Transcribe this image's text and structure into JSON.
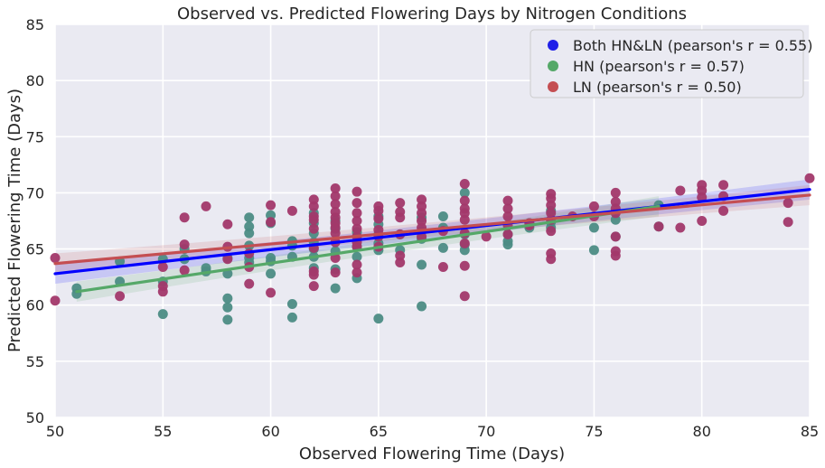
{
  "chart_data": {
    "type": "scatter",
    "title": "Observed vs. Predicted Flowering Days by Nitrogen Conditions",
    "xlabel": "Observed Flowering Time (Days)",
    "ylabel": "Predicted Flowering Time (Days)",
    "xlim": [
      50,
      85
    ],
    "ylim": [
      50,
      85
    ],
    "xticks": [
      "50",
      "55",
      "60",
      "65",
      "70",
      "75",
      "80",
      "85"
    ],
    "yticks": [
      "50",
      "55",
      "60",
      "65",
      "70",
      "75",
      "80",
      "85"
    ],
    "grid": true,
    "legend_position": "top-right",
    "legend": [
      {
        "label": "Both HN&LN (pearson's r = 0.55)",
        "color": "#2020e8"
      },
      {
        "label": "HN (pearson's r = 0.57)",
        "color": "#55a868"
      },
      {
        "label": "LN (pearson's r = 0.50)",
        "color": "#c44e52"
      }
    ],
    "regression_lines": [
      {
        "series": "Both HN&LN",
        "color": "#0000ff",
        "x": [
          50,
          85
        ],
        "y": [
          62.8,
          70.3
        ]
      },
      {
        "series": "HN",
        "color": "#55a868",
        "x": [
          51,
          78
        ],
        "y": [
          61.2,
          68.8
        ]
      },
      {
        "series": "LN",
        "color": "#c44e52",
        "x": [
          50,
          85
        ],
        "y": [
          63.7,
          69.8
        ]
      }
    ],
    "series": [
      {
        "name": "HN",
        "color": "#4c8c84",
        "points": [
          [
            51,
            61.0
          ],
          [
            51,
            61.5
          ],
          [
            53,
            62.1
          ],
          [
            53,
            63.9
          ],
          [
            55,
            59.2
          ],
          [
            55,
            62.1
          ],
          [
            55,
            64.1
          ],
          [
            56,
            64.1
          ],
          [
            56,
            65.0
          ],
          [
            57,
            63.0
          ],
          [
            57,
            63.3
          ],
          [
            58,
            58.7
          ],
          [
            58,
            59.8
          ],
          [
            58,
            60.6
          ],
          [
            58,
            62.8
          ],
          [
            58,
            64.2
          ],
          [
            59,
            63.8
          ],
          [
            59,
            64.2
          ],
          [
            59,
            65.3
          ],
          [
            59,
            66.4
          ],
          [
            59,
            67.0
          ],
          [
            59,
            67.8
          ],
          [
            60,
            62.8
          ],
          [
            60,
            63.9
          ],
          [
            60,
            64.2
          ],
          [
            60,
            67.3
          ],
          [
            60,
            68.0
          ],
          [
            61,
            58.9
          ],
          [
            61,
            60.1
          ],
          [
            61,
            64.3
          ],
          [
            61,
            65.3
          ],
          [
            61,
            65.7
          ],
          [
            62,
            63.3
          ],
          [
            62,
            64.3
          ],
          [
            62,
            65.0
          ],
          [
            62,
            65.6
          ],
          [
            62,
            66.4
          ],
          [
            62,
            67.3
          ],
          [
            62,
            68.2
          ],
          [
            63,
            61.5
          ],
          [
            63,
            63.2
          ],
          [
            63,
            64.8
          ],
          [
            63,
            66.8
          ],
          [
            63,
            67.5
          ],
          [
            64,
            62.4
          ],
          [
            64,
            64.3
          ],
          [
            64,
            65.2
          ],
          [
            64,
            66.5
          ],
          [
            65,
            58.8
          ],
          [
            65,
            64.9
          ],
          [
            65,
            65.5
          ],
          [
            65,
            66.3
          ],
          [
            65,
            67.2
          ],
          [
            65,
            67.9
          ],
          [
            66,
            64.9
          ],
          [
            66,
            66.3
          ],
          [
            67,
            59.9
          ],
          [
            67,
            63.6
          ],
          [
            67,
            65.9
          ],
          [
            67,
            66.6
          ],
          [
            67,
            67.8
          ],
          [
            68,
            65.1
          ],
          [
            68,
            66.9
          ],
          [
            68,
            67.9
          ],
          [
            69,
            64.9
          ],
          [
            69,
            65.4
          ],
          [
            69,
            66.3
          ],
          [
            69,
            70.0
          ],
          [
            71,
            65.4
          ],
          [
            71,
            65.7
          ],
          [
            71,
            66.3
          ],
          [
            72,
            66.9
          ],
          [
            72,
            67.3
          ],
          [
            73,
            66.9
          ],
          [
            73,
            67.4
          ],
          [
            73,
            68.4
          ],
          [
            75,
            64.9
          ],
          [
            75,
            66.9
          ],
          [
            76,
            66.1
          ],
          [
            76,
            67.6
          ],
          [
            78,
            67.0
          ],
          [
            78,
            68.9
          ]
        ]
      },
      {
        "name": "LN",
        "color": "#a2386a",
        "points": [
          [
            50,
            60.4
          ],
          [
            50,
            64.2
          ],
          [
            53,
            60.8
          ],
          [
            55,
            61.2
          ],
          [
            55,
            61.7
          ],
          [
            55,
            63.4
          ],
          [
            56,
            63.1
          ],
          [
            56,
            65.4
          ],
          [
            56,
            67.8
          ],
          [
            57,
            68.8
          ],
          [
            58,
            64.1
          ],
          [
            58,
            65.2
          ],
          [
            58,
            67.2
          ],
          [
            59,
            61.9
          ],
          [
            59,
            63.4
          ],
          [
            59,
            64.6
          ],
          [
            60,
            61.1
          ],
          [
            60,
            67.4
          ],
          [
            60,
            68.9
          ],
          [
            61,
            68.4
          ],
          [
            62,
            61.7
          ],
          [
            62,
            62.7
          ],
          [
            62,
            63.0
          ],
          [
            62,
            65.1
          ],
          [
            62,
            66.8
          ],
          [
            62,
            67.6
          ],
          [
            62,
            67.9
          ],
          [
            62,
            68.8
          ],
          [
            62,
            69.4
          ],
          [
            63,
            62.9
          ],
          [
            63,
            64.2
          ],
          [
            63,
            65.6
          ],
          [
            63,
            66.4
          ],
          [
            63,
            66.9
          ],
          [
            63,
            67.3
          ],
          [
            63,
            67.8
          ],
          [
            63,
            68.3
          ],
          [
            63,
            69.0
          ],
          [
            63,
            69.7
          ],
          [
            63,
            70.4
          ],
          [
            64,
            62.9
          ],
          [
            64,
            63.6
          ],
          [
            64,
            65.2
          ],
          [
            64,
            65.6
          ],
          [
            64,
            66.1
          ],
          [
            64,
            66.8
          ],
          [
            64,
            67.5
          ],
          [
            64,
            68.2
          ],
          [
            64,
            69.1
          ],
          [
            64,
            70.1
          ],
          [
            65,
            65.2
          ],
          [
            65,
            66.1
          ],
          [
            65,
            66.7
          ],
          [
            65,
            67.7
          ],
          [
            65,
            68.4
          ],
          [
            65,
            68.8
          ],
          [
            66,
            63.8
          ],
          [
            66,
            64.4
          ],
          [
            66,
            66.3
          ],
          [
            66,
            67.8
          ],
          [
            66,
            68.3
          ],
          [
            66,
            69.1
          ],
          [
            67,
            66.1
          ],
          [
            67,
            66.9
          ],
          [
            67,
            67.5
          ],
          [
            67,
            68.2
          ],
          [
            67,
            68.8
          ],
          [
            67,
            69.4
          ],
          [
            68,
            63.4
          ],
          [
            68,
            66.6
          ],
          [
            69,
            60.8
          ],
          [
            69,
            63.5
          ],
          [
            69,
            65.5
          ],
          [
            69,
            66.4
          ],
          [
            69,
            67.6
          ],
          [
            69,
            68.2
          ],
          [
            69,
            68.6
          ],
          [
            69,
            69.3
          ],
          [
            69,
            70.8
          ],
          [
            70,
            66.1
          ],
          [
            71,
            66.3
          ],
          [
            71,
            67.1
          ],
          [
            71,
            67.9
          ],
          [
            71,
            68.6
          ],
          [
            71,
            69.3
          ],
          [
            72,
            67.1
          ],
          [
            72,
            67.3
          ],
          [
            73,
            64.1
          ],
          [
            73,
            64.6
          ],
          [
            73,
            66.6
          ],
          [
            73,
            67.6
          ],
          [
            73,
            68.2
          ],
          [
            73,
            68.9
          ],
          [
            73,
            69.5
          ],
          [
            73,
            69.9
          ],
          [
            74,
            67.9
          ],
          [
            75,
            67.9
          ],
          [
            75,
            68.8
          ],
          [
            76,
            64.4
          ],
          [
            76,
            64.8
          ],
          [
            76,
            66.1
          ],
          [
            76,
            68.2
          ],
          [
            76,
            68.6
          ],
          [
            76,
            69.2
          ],
          [
            76,
            70.0
          ],
          [
            78,
            67.0
          ],
          [
            79,
            66.9
          ],
          [
            79,
            70.2
          ],
          [
            80,
            67.5
          ],
          [
            80,
            69.6
          ],
          [
            80,
            70.2
          ],
          [
            80,
            70.7
          ],
          [
            81,
            68.4
          ],
          [
            81,
            69.7
          ],
          [
            81,
            70.7
          ],
          [
            84,
            67.4
          ],
          [
            84,
            69.1
          ],
          [
            85,
            71.3
          ]
        ]
      }
    ]
  }
}
